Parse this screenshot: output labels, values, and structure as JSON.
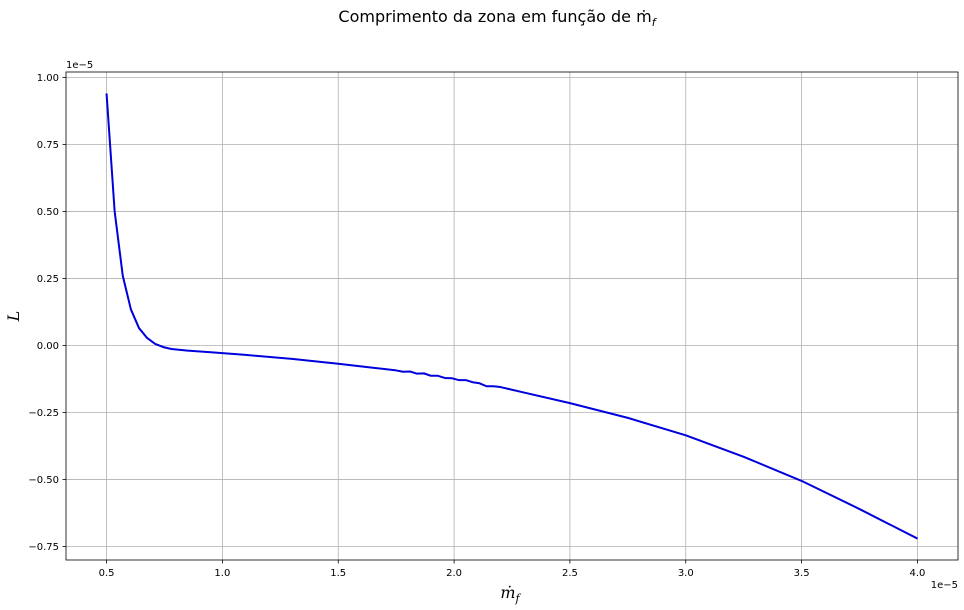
{
  "chart_data": {
    "type": "line",
    "title": "Comprimento da zona em função de ṁ",
    "title_subscript": "f",
    "xlabel": "ṁ",
    "xlabel_subscript": "f",
    "ylabel": "L",
    "x_offset_label": "1e−5",
    "y_offset_label": "1e−5",
    "xlim": [
      0.325,
      4.175
    ],
    "ylim": [
      -0.8,
      1.02
    ],
    "x_ticks": [
      0.5,
      1.0,
      1.5,
      2.0,
      2.5,
      3.0,
      3.5,
      4.0
    ],
    "x_tick_labels": [
      "0.5",
      "1.0",
      "1.5",
      "2.0",
      "2.5",
      "3.0",
      "3.5",
      "4.0"
    ],
    "y_ticks": [
      -0.75,
      -0.5,
      -0.25,
      0.0,
      0.25,
      0.5,
      0.75,
      1.0
    ],
    "y_tick_labels": [
      "−0.75",
      "−0.50",
      "−0.25",
      "0.00",
      "0.25",
      "0.50",
      "0.75",
      "1.00"
    ],
    "grid": true,
    "color": "#0000dd",
    "series": [
      {
        "x": [
          0.5,
          0.535,
          0.57,
          0.605,
          0.64,
          0.675,
          0.71,
          0.745,
          0.78,
          0.85,
          0.95,
          1.1,
          1.3,
          1.5,
          1.65,
          1.75,
          1.78,
          1.81,
          1.84,
          1.87,
          1.9,
          1.93,
          1.96,
          1.99,
          2.02,
          2.05,
          2.08,
          2.11,
          2.14,
          2.17,
          2.2,
          2.3,
          2.5,
          2.75,
          3.0,
          3.25,
          3.5,
          3.75,
          4.0
        ],
        "y": [
          0.94,
          0.5,
          0.26,
          0.135,
          0.065,
          0.028,
          0.006,
          -0.006,
          -0.013,
          -0.019,
          -0.025,
          -0.035,
          -0.05,
          -0.068,
          -0.083,
          -0.093,
          -0.098,
          -0.097,
          -0.105,
          -0.104,
          -0.113,
          -0.113,
          -0.121,
          -0.122,
          -0.129,
          -0.129,
          -0.137,
          -0.141,
          -0.152,
          -0.152,
          -0.155,
          -0.175,
          -0.215,
          -0.27,
          -0.335,
          -0.415,
          -0.505,
          -0.61,
          -0.72
        ]
      }
    ]
  }
}
